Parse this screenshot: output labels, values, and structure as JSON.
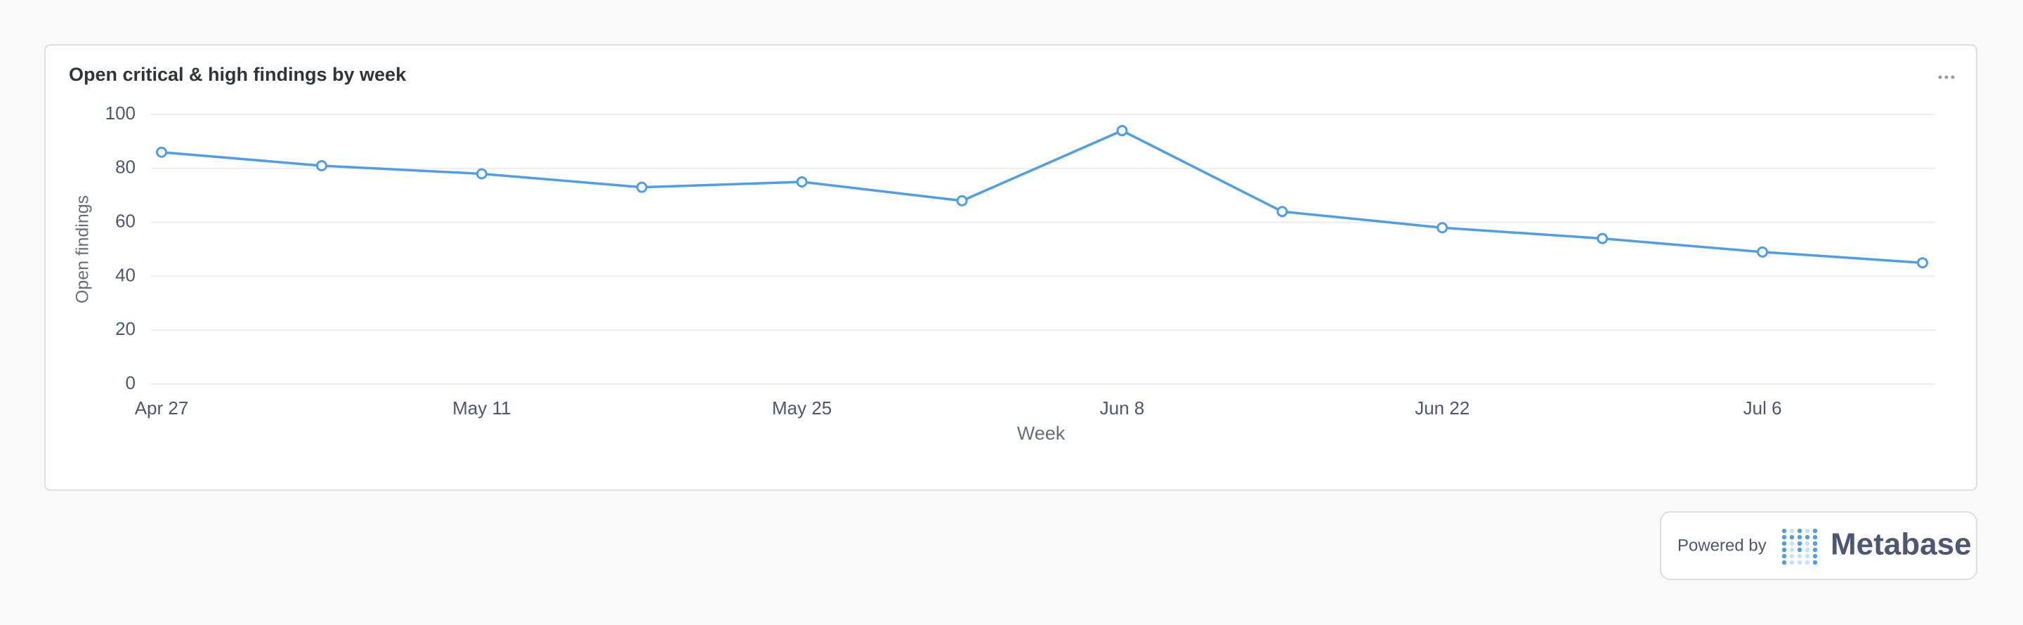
{
  "chart_data": {
    "type": "line",
    "title": "Open critical & high findings by week",
    "x_label": "Week",
    "y_label": "Open findings",
    "categories": [
      "Apr 27",
      null,
      "May 11",
      null,
      "May 25",
      null,
      "Jun 8",
      null,
      "Jun 22",
      null,
      "Jul 6",
      null
    ],
    "values": [
      86,
      81,
      78,
      73,
      75,
      68,
      94,
      64,
      58,
      54,
      49,
      45
    ],
    "color": "#509ee3",
    "ylim": [
      0,
      100
    ],
    "yticks": [
      0,
      20,
      40,
      60,
      80,
      100
    ],
    "grid": true
  },
  "footer": {
    "powered_by": "Powered by",
    "brand": "Metabase"
  }
}
